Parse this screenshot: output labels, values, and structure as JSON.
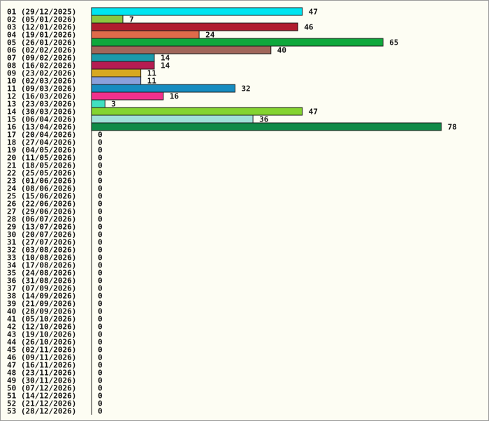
{
  "chart_data": {
    "type": "bar",
    "orientation": "horizontal",
    "title": "",
    "xlabel": "",
    "ylabel": "",
    "grid": false,
    "legend": "none",
    "xlim": [
      0,
      78
    ],
    "categories": [
      "01 (29/12/2025)",
      "02 (05/01/2026)",
      "03 (12/01/2026)",
      "04 (19/01/2026)",
      "05 (26/01/2026)",
      "06 (02/02/2026)",
      "07 (09/02/2026)",
      "08 (16/02/2026)",
      "09 (23/02/2026)",
      "10 (02/03/2026)",
      "11 (09/03/2026)",
      "12 (16/03/2026)",
      "13 (23/03/2026)",
      "14 (30/03/2026)",
      "15 (06/04/2026)",
      "16 (13/04/2026)",
      "17 (20/04/2026)",
      "18 (27/04/2026)",
      "19 (04/05/2026)",
      "20 (11/05/2026)",
      "21 (18/05/2026)",
      "22 (25/05/2026)",
      "23 (01/06/2026)",
      "24 (08/06/2026)",
      "25 (15/06/2026)",
      "26 (22/06/2026)",
      "27 (29/06/2026)",
      "28 (06/07/2026)",
      "29 (13/07/2026)",
      "30 (20/07/2026)",
      "31 (27/07/2026)",
      "32 (03/08/2026)",
      "33 (10/08/2026)",
      "34 (17/08/2026)",
      "35 (24/08/2026)",
      "36 (31/08/2026)",
      "37 (07/09/2026)",
      "38 (14/09/2026)",
      "39 (21/09/2026)",
      "40 (28/09/2026)",
      "41 (05/10/2026)",
      "42 (12/10/2026)",
      "43 (19/10/2026)",
      "44 (26/10/2026)",
      "45 (02/11/2026)",
      "46 (09/11/2026)",
      "47 (16/11/2026)",
      "48 (23/11/2026)",
      "49 (30/11/2026)",
      "50 (07/12/2026)",
      "51 (14/12/2026)",
      "52 (21/12/2026)",
      "53 (28/12/2026)"
    ],
    "values": [
      47,
      7,
      46,
      24,
      65,
      40,
      14,
      14,
      11,
      11,
      32,
      16,
      3,
      47,
      36,
      78,
      0,
      0,
      0,
      0,
      0,
      0,
      0,
      0,
      0,
      0,
      0,
      0,
      0,
      0,
      0,
      0,
      0,
      0,
      0,
      0,
      0,
      0,
      0,
      0,
      0,
      0,
      0,
      0,
      0,
      0,
      0,
      0,
      0,
      0,
      0,
      0,
      0
    ],
    "colors": [
      "#00e5f0",
      "#8cc63f",
      "#b01c2e",
      "#e06a4a",
      "#0fa83c",
      "#a0665a",
      "#1a9aaa",
      "#b51c52",
      "#d8a820",
      "#8aa0dc",
      "#168cc0",
      "#f0308c",
      "#40e0c0",
      "#84d430",
      "#a0e0d8",
      "#108a48"
    ]
  }
}
